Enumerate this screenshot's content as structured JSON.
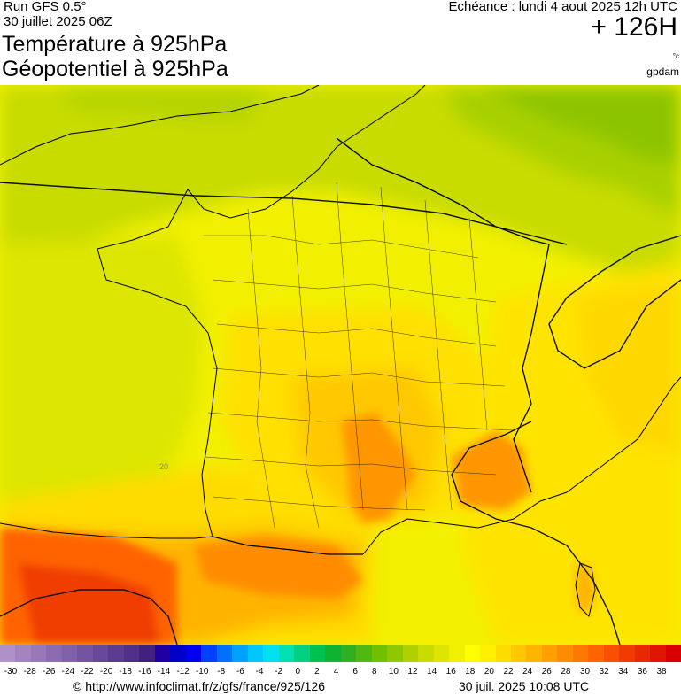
{
  "header": {
    "run_label": "Run GFS 0.5°",
    "run_date": "30 juillet 2025 06Z",
    "title_line1": "Température à 925hPa",
    "title_line2": "Géopotentiel à 925hPa",
    "echeance": "Echéance : lundi 4 aout 2025 12h UTC",
    "horizon": "+ 126H",
    "unit_temperature": "°c",
    "unit_geopotential": "gpdam"
  },
  "map": {
    "region": "France",
    "contour_label": "20"
  },
  "scale": {
    "labels": [
      "-30",
      "-28",
      "-26",
      "-24",
      "-22",
      "-20",
      "-18",
      "-16",
      "-14",
      "-12",
      "-10",
      "-8",
      "-6",
      "-4",
      "-2",
      "0",
      "2",
      "4",
      "6",
      "8",
      "10",
      "12",
      "14",
      "16",
      "18",
      "20",
      "22",
      "24",
      "26",
      "28",
      "30",
      "32",
      "34",
      "36",
      "38"
    ],
    "colors": [
      "#b090c8",
      "#a484c0",
      "#9878b8",
      "#8c6cb0",
      "#8060a8",
      "#7454a0",
      "#684898",
      "#5c3c90",
      "#503088",
      "#402080",
      "#2000a0",
      "#0000c8",
      "#0000f0",
      "#0040ff",
      "#0070ff",
      "#00a0ff",
      "#00c8ff",
      "#00e0f0",
      "#00e0b0",
      "#00d080",
      "#00c050",
      "#10b030",
      "#30b020",
      "#50b810",
      "#70c000",
      "#90c800",
      "#b0d000",
      "#c8dc00",
      "#dce600",
      "#f0f000",
      "#ffff00",
      "#fff000",
      "#ffdc00",
      "#ffc800",
      "#ffb400",
      "#ffa000",
      "#ff8c00",
      "#ff7800",
      "#ff6400",
      "#f85000",
      "#f03c00",
      "#e82800",
      "#e01400",
      "#d80000"
    ]
  },
  "footer": {
    "url": "© http://www.infoclimat.fr/z/gfs/france/925/126",
    "timestamp": "30 juil. 2025 10:08 UTC"
  }
}
